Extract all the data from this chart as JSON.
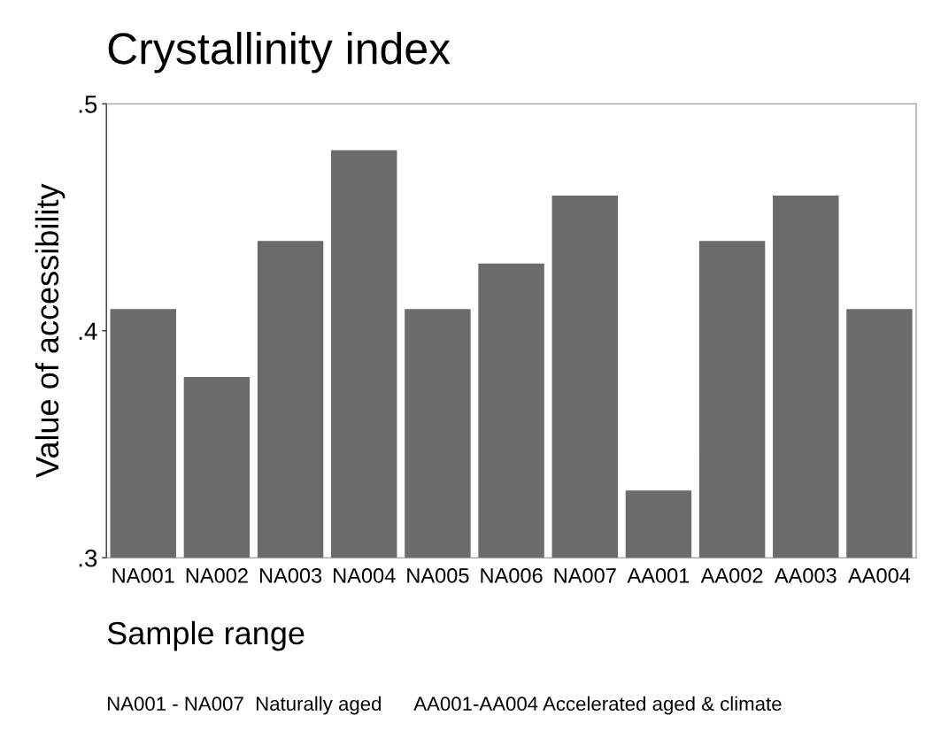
{
  "chart_data": {
    "type": "bar",
    "title": "Crystallinity index",
    "xlabel": "Sample range",
    "ylabel": "Value of accessibility",
    "categories": [
      "NA001",
      "NA002",
      "NA003",
      "NA004",
      "NA005",
      "NA006",
      "NA007",
      "AA001",
      "AA002",
      "AA003",
      "AA004"
    ],
    "values": [
      0.41,
      0.38,
      0.44,
      0.48,
      0.41,
      0.43,
      0.46,
      0.33,
      0.44,
      0.46,
      0.41
    ],
    "color": "#6b6b6b",
    "ylim": [
      0.3,
      0.5
    ],
    "yticks": [
      {
        "value": 0.3,
        "label": ".3"
      },
      {
        "value": 0.4,
        "label": ".4"
      },
      {
        "value": 0.5,
        "label": ".5"
      }
    ],
    "grid": false,
    "annotations": [
      "NA001 - NA007  Naturally aged      AA001-AA004 Accelerated aged & climate"
    ]
  }
}
